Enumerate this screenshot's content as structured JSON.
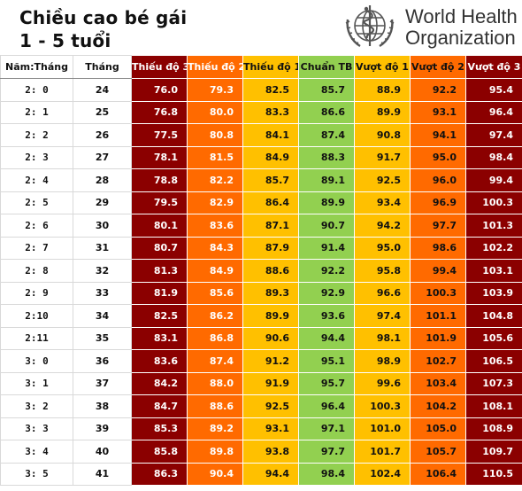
{
  "header": {
    "title_line1": "Chiều cao bé gái",
    "title_line2": "1 - 5 tuổi",
    "logo_line1": "World Health",
    "logo_line2": "Organization"
  },
  "columns": [
    "Năm:Tháng",
    "Tháng",
    "Thiếu độ 3",
    "Thiếu độ 2",
    "Thiếu độ 1",
    "Chuẩn TB",
    "Vượt độ 1",
    "Vượt độ 2",
    "Vượt độ 3"
  ],
  "rows": [
    [
      "2:  0",
      "24",
      "76.0",
      "79.3",
      "82.5",
      "85.7",
      "88.9",
      "92.2",
      "95.4"
    ],
    [
      "2:  1",
      "25",
      "76.8",
      "80.0",
      "83.3",
      "86.6",
      "89.9",
      "93.1",
      "96.4"
    ],
    [
      "2:  2",
      "26",
      "77.5",
      "80.8",
      "84.1",
      "87.4",
      "90.8",
      "94.1",
      "97.4"
    ],
    [
      "2:  3",
      "27",
      "78.1",
      "81.5",
      "84.9",
      "88.3",
      "91.7",
      "95.0",
      "98.4"
    ],
    [
      "2:  4",
      "28",
      "78.8",
      "82.2",
      "85.7",
      "89.1",
      "92.5",
      "96.0",
      "99.4"
    ],
    [
      "2:  5",
      "29",
      "79.5",
      "82.9",
      "86.4",
      "89.9",
      "93.4",
      "96.9",
      "100.3"
    ],
    [
      "2:  6",
      "30",
      "80.1",
      "83.6",
      "87.1",
      "90.7",
      "94.2",
      "97.7",
      "101.3"
    ],
    [
      "2:  7",
      "31",
      "80.7",
      "84.3",
      "87.9",
      "91.4",
      "95.0",
      "98.6",
      "102.2"
    ],
    [
      "2:  8",
      "32",
      "81.3",
      "84.9",
      "88.6",
      "92.2",
      "95.8",
      "99.4",
      "103.1"
    ],
    [
      "2:  9",
      "33",
      "81.9",
      "85.6",
      "89.3",
      "92.9",
      "96.6",
      "100.3",
      "103.9"
    ],
    [
      "2:10",
      "34",
      "82.5",
      "86.2",
      "89.9",
      "93.6",
      "97.4",
      "101.1",
      "104.8"
    ],
    [
      "2:11",
      "35",
      "83.1",
      "86.8",
      "90.6",
      "94.4",
      "98.1",
      "101.9",
      "105.6"
    ],
    [
      "3:  0",
      "36",
      "83.6",
      "87.4",
      "91.2",
      "95.1",
      "98.9",
      "102.7",
      "106.5"
    ],
    [
      "3:  1",
      "37",
      "84.2",
      "88.0",
      "91.9",
      "95.7",
      "99.6",
      "103.4",
      "107.3"
    ],
    [
      "3:  2",
      "38",
      "84.7",
      "88.6",
      "92.5",
      "96.4",
      "100.3",
      "104.2",
      "108.1"
    ],
    [
      "3:  3",
      "39",
      "85.3",
      "89.2",
      "93.1",
      "97.1",
      "101.0",
      "105.0",
      "108.9"
    ],
    [
      "3:  4",
      "40",
      "85.8",
      "89.8",
      "93.8",
      "97.7",
      "101.7",
      "105.7",
      "109.7"
    ],
    [
      "3:  5",
      "41",
      "86.3",
      "90.4",
      "94.4",
      "98.4",
      "102.4",
      "106.4",
      "110.5"
    ]
  ],
  "colors": {
    "severe": "#8b0000",
    "moderate": "#ff6a00",
    "mild": "#ffc000",
    "normal": "#92d050"
  },
  "icons": {
    "logo": "who-emblem-icon"
  }
}
